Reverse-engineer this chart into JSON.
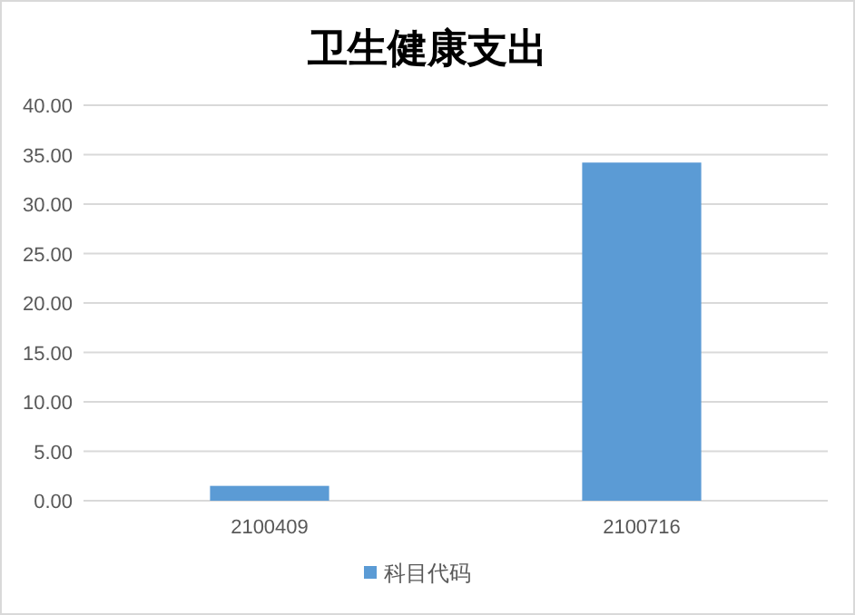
{
  "chart_data": {
    "type": "bar",
    "title": "卫生健康支出",
    "categories": [
      "2100409",
      "2100716"
    ],
    "series": [
      {
        "name": "科目代码",
        "color": "#5b9bd5",
        "values": [
          1.5,
          34.2
        ]
      }
    ],
    "ylim": [
      0,
      40
    ],
    "yticks": [
      {
        "value": 0,
        "label": "0.00"
      },
      {
        "value": 5,
        "label": "5.00"
      },
      {
        "value": 10,
        "label": "10.00"
      },
      {
        "value": 15,
        "label": "15.00"
      },
      {
        "value": 20,
        "label": "20.00"
      },
      {
        "value": 25,
        "label": "25.00"
      },
      {
        "value": 30,
        "label": "30.00"
      },
      {
        "value": 35,
        "label": "35.00"
      },
      {
        "value": 40,
        "label": "40.00"
      }
    ],
    "grid": "y",
    "legend": "bottom"
  }
}
